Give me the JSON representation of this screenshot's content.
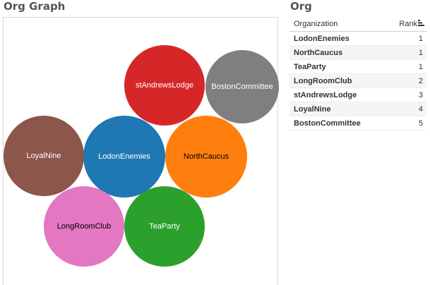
{
  "graph": {
    "title": "Org Graph",
    "bubbles": [
      {
        "label": "stAndrewsLodge",
        "color": "#d62728",
        "text_color": "#ffffff"
      },
      {
        "label": "BostonCommittee",
        "color": "#7f7f7f",
        "text_color": "#ffffff"
      },
      {
        "label": "LoyalNine",
        "color": "#8c564b",
        "text_color": "#ffffff"
      },
      {
        "label": "LodonEnemies",
        "color": "#1f77b4",
        "text_color": "#ffffff"
      },
      {
        "label": "NorthCaucus",
        "color": "#ff7f0e",
        "text_color": "#000000"
      },
      {
        "label": "LongRoomClub",
        "color": "#e377c2",
        "text_color": "#000000"
      },
      {
        "label": "TeaParty",
        "color": "#2ca02c",
        "text_color": "#ffffff"
      }
    ]
  },
  "org_table": {
    "title": "Org",
    "columns": [
      "Organization",
      "Rank"
    ],
    "sort_icon": "sort-descending-icon",
    "rows": [
      {
        "organization": "LodonEnemies",
        "rank": "1"
      },
      {
        "organization": "NorthCaucus",
        "rank": "1"
      },
      {
        "organization": "TeaParty",
        "rank": "1"
      },
      {
        "organization": "LongRoomClub",
        "rank": "2"
      },
      {
        "organization": "stAndrewsLodge",
        "rank": "3"
      },
      {
        "organization": "LoyalNine",
        "rank": "4"
      },
      {
        "organization": "BostonCommittee",
        "rank": "5"
      }
    ]
  }
}
